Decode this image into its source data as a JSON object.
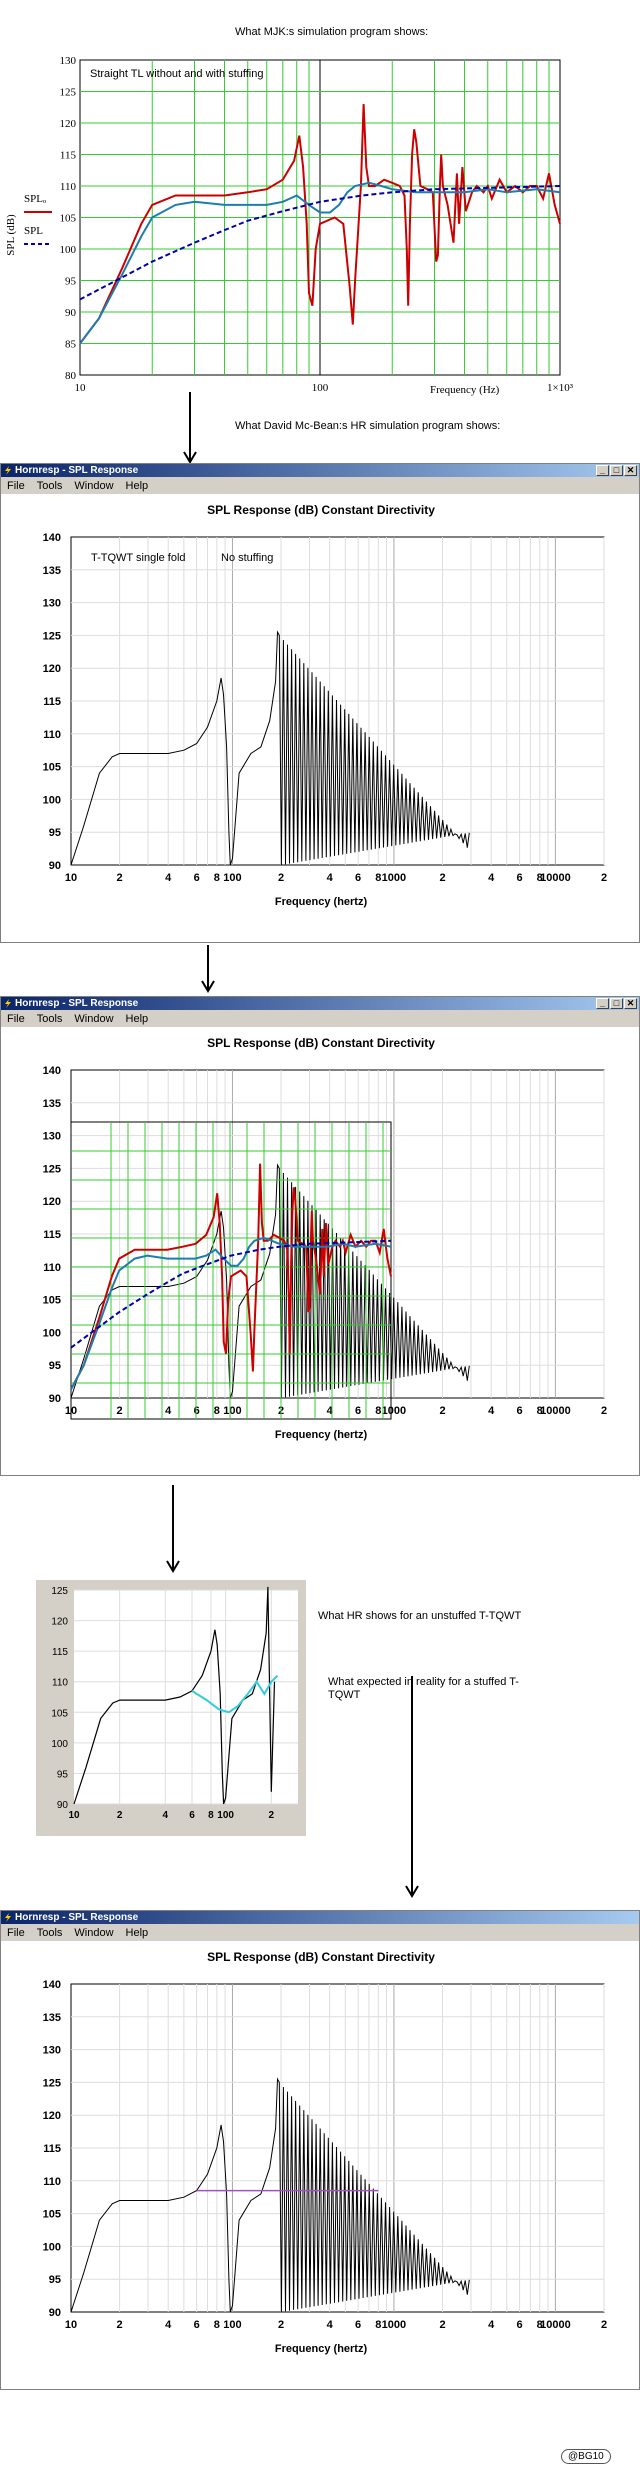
{
  "top": {
    "caption": "What MJK:s simulation program shows:",
    "plot_text": "Straight TL   without and with stuffing",
    "ylabel": "SPL (dB)",
    "legend_a": "SPLₒ",
    "legend_b": "SPL",
    "xlabel": "Frequency (Hz)",
    "x_end_label": "1×10³"
  },
  "hr_caption": "What David Mc-Bean:s HR  simulation program shows:",
  "window": {
    "title": "Hornresp - SPL Response",
    "menus": [
      "File",
      "Tools",
      "Window",
      "Help"
    ],
    "plot_title": "SPL Response (dB)   Constant Directivity",
    "xlabel": "Frequency (hertz)",
    "btn_min": "_",
    "btn_max": "□",
    "btn_close": "✕"
  },
  "hr1_text_a": "T-TQWT single fold",
  "hr1_text_b": "No stuffing",
  "crop": {
    "annotation_a": "What HR shows for an unstuffed T-TQWT",
    "annotation_b": "What expected in reality for a stuffed T-TQWT"
  },
  "signature": "@BG10",
  "colors": {
    "red": "#cc0000",
    "blue": "#0000b0",
    "teal": "#1c7db0",
    "grid_green": "#33cc33",
    "cyan": "#33ccdd",
    "purple": "#a050c0"
  },
  "chart_data": [
    {
      "type": "line",
      "title": "Straight TL   without and with stuffing",
      "xlabel": "Frequency (Hz)",
      "ylabel": "SPL (dB)",
      "xscale": "log",
      "xlim": [
        10,
        1000
      ],
      "ylim": [
        80,
        130
      ],
      "x_ticks": [
        "10",
        "100",
        "1×10³"
      ],
      "y_ticks": [
        80,
        85,
        90,
        95,
        100,
        105,
        110,
        115,
        120,
        125,
        130
      ],
      "series": [
        {
          "name": "SPLₒ",
          "color": "#cc0000",
          "points": [
            [
              10,
              85
            ],
            [
              12,
              89
            ],
            [
              15,
              97
            ],
            [
              18,
              104
            ],
            [
              20,
              107
            ],
            [
              25,
              108.5
            ],
            [
              30,
              108.5
            ],
            [
              40,
              108.5
            ],
            [
              50,
              109
            ],
            [
              60,
              109.5
            ],
            [
              70,
              111
            ],
            [
              78,
              114
            ],
            [
              82,
              118
            ],
            [
              85,
              113
            ],
            [
              88,
              104
            ],
            [
              90,
              93
            ],
            [
              93,
              91
            ],
            [
              96,
              100
            ],
            [
              100,
              104
            ],
            [
              115,
              105
            ],
            [
              125,
              104
            ],
            [
              133,
              94
            ],
            [
              137,
              88
            ],
            [
              140,
              95
            ],
            [
              148,
              110
            ],
            [
              152,
              123
            ],
            [
              156,
              113
            ],
            [
              160,
              110
            ],
            [
              170,
              110
            ],
            [
              185,
              111
            ],
            [
              200,
              110.5
            ],
            [
              215,
              110
            ],
            [
              225,
              108.5
            ],
            [
              230,
              100
            ],
            [
              233,
              91
            ],
            [
              237,
              104
            ],
            [
              242,
              115
            ],
            [
              247,
              119
            ],
            [
              252,
              117
            ],
            [
              262,
              110
            ],
            [
              280,
              109.5
            ],
            [
              295,
              109
            ],
            [
              305,
              98
            ],
            [
              310,
              99
            ],
            [
              316,
              110
            ],
            [
              320,
              115
            ],
            [
              325,
              110
            ],
            [
              340,
              107
            ],
            [
              360,
              101
            ],
            [
              372,
              112
            ],
            [
              380,
              104
            ],
            [
              392,
              113
            ],
            [
              405,
              106
            ],
            [
              430,
              109
            ],
            [
              450,
              110
            ],
            [
              480,
              109
            ],
            [
              500,
              110
            ],
            [
              520,
              108
            ],
            [
              560,
              111
            ],
            [
              600,
              109
            ],
            [
              650,
              110
            ],
            [
              700,
              109
            ],
            [
              750,
              110
            ],
            [
              800,
              110
            ],
            [
              850,
              108
            ],
            [
              900,
              112
            ],
            [
              950,
              107
            ],
            [
              1000,
              104
            ]
          ]
        },
        {
          "name": "SPL",
          "color": "#1c7db0",
          "points": [
            [
              10,
              85
            ],
            [
              12,
              89
            ],
            [
              15,
              96
            ],
            [
              18,
              102
            ],
            [
              20,
              105
            ],
            [
              25,
              107
            ],
            [
              30,
              107.5
            ],
            [
              40,
              107
            ],
            [
              50,
              107
            ],
            [
              60,
              107
            ],
            [
              70,
              107.5
            ],
            [
              80,
              108.5
            ],
            [
              90,
              107
            ],
            [
              100,
              105.8
            ],
            [
              110,
              105.8
            ],
            [
              120,
              107
            ],
            [
              130,
              109
            ],
            [
              140,
              110
            ],
            [
              160,
              110.5
            ],
            [
              180,
              110
            ],
            [
              200,
              109.5
            ],
            [
              250,
              109
            ],
            [
              300,
              109
            ],
            [
              400,
              109
            ],
            [
              500,
              109.5
            ],
            [
              600,
              109
            ],
            [
              800,
              109.5
            ],
            [
              1000,
              109
            ]
          ]
        },
        {
          "name": "SPLᵣ",
          "color": "#0000b0",
          "dashed": true,
          "points": [
            [
              10,
              92
            ],
            [
              15,
              95.5
            ],
            [
              20,
              98
            ],
            [
              30,
              101
            ],
            [
              40,
              103
            ],
            [
              50,
              104.5
            ],
            [
              70,
              106
            ],
            [
              100,
              107.5
            ],
            [
              150,
              108.5
            ],
            [
              200,
              109
            ],
            [
              300,
              109.5
            ],
            [
              500,
              109.7
            ],
            [
              1000,
              110
            ]
          ]
        }
      ]
    },
    {
      "type": "line",
      "title": "SPL Response (dB)   Constant Directivity",
      "xlabel": "Frequency (hertz)",
      "xscale": "log",
      "xlim": [
        10,
        20000
      ],
      "ylim": [
        90,
        140
      ],
      "x_ticks": [
        "10",
        "2",
        "4",
        "6",
        "8",
        "100",
        "2",
        "4",
        "6",
        "8",
        "1000",
        "2",
        "4",
        "6",
        "8",
        "10000",
        "2"
      ],
      "y_ticks": [
        90,
        95,
        100,
        105,
        110,
        115,
        120,
        125,
        130,
        135,
        140
      ],
      "annotations": [
        "T-TQWT single fold",
        "No stuffing"
      ],
      "series": [
        {
          "color": "#000000",
          "description_points": [
            [
              10,
              90
            ],
            [
              12,
              96
            ],
            [
              15,
              104
            ],
            [
              18,
              106.5
            ],
            [
              20,
              107
            ],
            [
              30,
              107
            ],
            [
              40,
              107
            ],
            [
              50,
              107.5
            ],
            [
              60,
              108.5
            ],
            [
              70,
              111
            ],
            [
              80,
              115
            ],
            [
              85,
              118.5
            ],
            [
              88,
              116
            ],
            [
              92,
              108
            ],
            [
              95,
              95
            ],
            [
              97,
              90
            ],
            [
              100,
              91
            ],
            [
              110,
              104
            ],
            [
              130,
              107
            ],
            [
              150,
              108
            ],
            [
              170,
              112
            ],
            [
              185,
              118
            ],
            [
              190,
              125.5
            ]
          ]
        }
      ]
    },
    {
      "type": "line",
      "title": "SPL Response (dB)   Constant Directivity",
      "xlabel": "Frequency (hertz)",
      "xscale": "log",
      "xlim": [
        10,
        20000
      ],
      "ylim": [
        90,
        140
      ],
      "description": "Hornresp response overlaid with the MJK chart"
    },
    {
      "type": "line",
      "xscale": "log",
      "ylim": [
        90,
        125
      ],
      "y_ticks": [
        90,
        95,
        100,
        105,
        110,
        115,
        120,
        125
      ],
      "x_ticks": [
        "10",
        "2",
        "4",
        "6",
        "8",
        "100",
        "2"
      ],
      "annotations": [
        "What HR shows for an unstuffed T-TQWT",
        "What expected in reality for a stuffed T-TQWT"
      ]
    },
    {
      "type": "line",
      "title": "SPL Response (dB)   Constant Directivity",
      "xlabel": "Frequency (hertz)",
      "xscale": "log",
      "xlim": [
        10,
        20000
      ],
      "ylim": [
        90,
        140
      ]
    }
  ]
}
